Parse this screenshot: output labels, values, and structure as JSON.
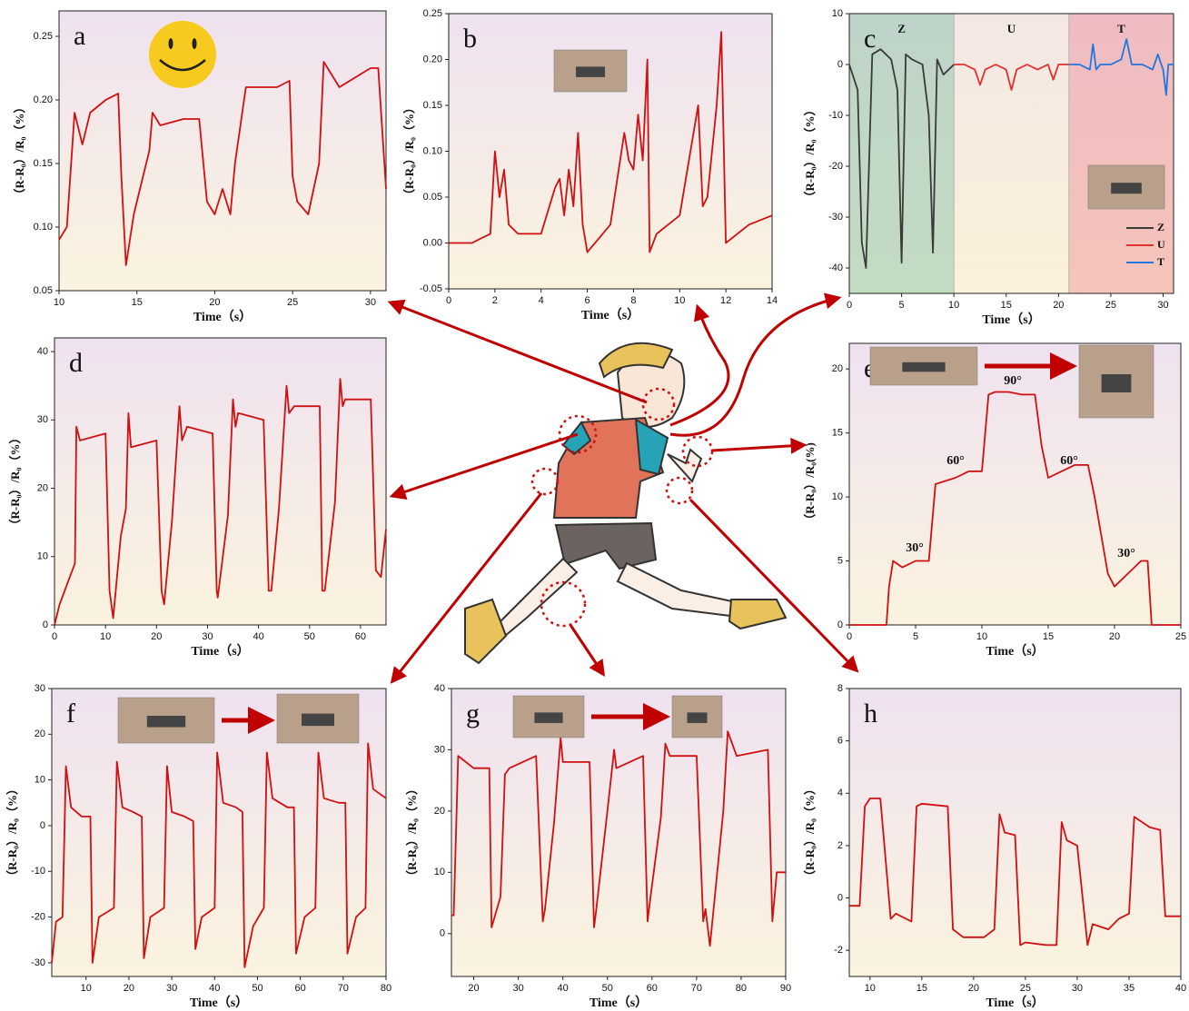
{
  "chart_data": [
    {
      "type": "line",
      "label": "a",
      "xlabel": "Time（s）",
      "ylabel": "（R-R₀）/R₀（%）",
      "color": "#d01010",
      "x": [
        10,
        10.5,
        11,
        11.5,
        12,
        13,
        13.8,
        14,
        14.3,
        14.8,
        15.2,
        15.8,
        16,
        16.5,
        18,
        19,
        19.5,
        20,
        20.5,
        21,
        21.3,
        22,
        24,
        24.8,
        25,
        25.3,
        26,
        26.7,
        27,
        28,
        30,
        30.5,
        31
      ],
      "values": [
        0.09,
        0.1,
        0.19,
        0.165,
        0.19,
        0.2,
        0.205,
        0.14,
        0.07,
        0.11,
        0.13,
        0.16,
        0.19,
        0.18,
        0.185,
        0.185,
        0.12,
        0.11,
        0.13,
        0.11,
        0.15,
        0.21,
        0.21,
        0.215,
        0.14,
        0.12,
        0.11,
        0.15,
        0.23,
        0.21,
        0.225,
        0.225,
        0.13
      ],
      "xlim": [
        10,
        31
      ],
      "ylim": [
        0.05,
        0.27
      ],
      "xticks": [
        10,
        15,
        20,
        25,
        30
      ],
      "yticks": [
        0.05,
        {
          "value": 0.1,
          "label": "0.10"
        },
        0.15,
        {
          "value": 0.2,
          "label": "0.20"
        },
        0.25
      ]
    },
    {
      "type": "line",
      "label": "b",
      "xlabel": "Time（s）",
      "ylabel": "（R-R₀）/R₀（%）",
      "color": "#d01010",
      "x": [
        0,
        1,
        1.8,
        2,
        2.2,
        2.4,
        2.6,
        3,
        4,
        4.6,
        4.8,
        5,
        5.2,
        5.4,
        5.6,
        5.8,
        6,
        7,
        7.6,
        7.8,
        8,
        8.2,
        8.4,
        8.6,
        8.7,
        9,
        10,
        10.8,
        11,
        11.2,
        11.6,
        11.8,
        12,
        13,
        14
      ],
      "values": [
        0,
        0,
        0.01,
        0.1,
        0.05,
        0.08,
        0.02,
        0.01,
        0.01,
        0.06,
        0.07,
        0.03,
        0.08,
        0.04,
        0.12,
        0.02,
        -0.01,
        0.02,
        0.12,
        0.09,
        0.08,
        0.14,
        0.09,
        0.2,
        -0.01,
        0.01,
        0.03,
        0.15,
        0.04,
        0.05,
        0.15,
        0.23,
        0.0,
        0.02,
        0.03
      ],
      "xlim": [
        0,
        14
      ],
      "ylim": [
        -0.05,
        0.25
      ],
      "xticks": [
        0,
        2,
        4,
        6,
        8,
        10,
        12,
        14
      ],
      "yticks": [
        -0.05,
        {
          "value": 0,
          "label": "0.00"
        },
        0.05,
        {
          "value": 0.1,
          "label": "0.10"
        },
        0.15,
        {
          "value": 0.2,
          "label": "0.20"
        },
        0.25
      ]
    },
    {
      "type": "line",
      "label": "c",
      "xlabel": "Time（s）",
      "ylabel": "（R-R₀）/R₀（%）",
      "series": [
        {
          "name": "Z",
          "color": "#3a3a3a",
          "x": [
            0,
            0.8,
            1.2,
            1.6,
            2.2,
            3,
            4,
            4.6,
            5,
            5.4,
            6,
            7,
            7.6,
            8,
            8.4,
            9,
            10
          ],
          "values": [
            0,
            -5,
            -35,
            -40,
            2,
            3,
            1,
            -5,
            -39,
            2,
            1,
            0,
            -10,
            -37,
            1,
            -2,
            0
          ]
        },
        {
          "name": "U",
          "color": "#e03030",
          "x": [
            10,
            11,
            12,
            12.5,
            13,
            14,
            15,
            15.5,
            16,
            17,
            18,
            19,
            19.5,
            20,
            21
          ],
          "values": [
            0,
            0,
            -1,
            -4,
            -1,
            0,
            -1,
            -5,
            -1,
            0,
            -1,
            0,
            -3,
            0,
            0
          ]
        },
        {
          "name": "T",
          "color": "#1f77e0",
          "x": [
            21,
            22,
            23,
            23.3,
            23.6,
            24,
            25,
            26,
            26.5,
            27,
            28,
            29,
            29.5,
            30,
            30.3,
            30.5,
            31
          ],
          "values": [
            0,
            0,
            -1,
            4,
            -1,
            0,
            0,
            1,
            5,
            0,
            0,
            -1,
            2,
            -1,
            -6,
            0,
            0
          ]
        }
      ],
      "xlim": [
        0,
        31
      ],
      "ylim": [
        -45,
        10
      ],
      "xticks": [
        0,
        5,
        10,
        15,
        20,
        25,
        30
      ],
      "yticks": [
        10,
        0,
        -10,
        -20,
        -30,
        -40
      ]
    },
    {
      "type": "line",
      "label": "d",
      "xlabel": "Time（s）",
      "ylabel": "（R-R₀）/R₀（%）",
      "color": "#d01010",
      "x": [
        0,
        1,
        3,
        4,
        4.3,
        5,
        10,
        10.8,
        11.5,
        13,
        14,
        14.5,
        15,
        20,
        21,
        21.5,
        23,
        24.5,
        25,
        26,
        31,
        31.8,
        32,
        34,
        35,
        35.5,
        36,
        41,
        42,
        42.5,
        44,
        45.5,
        46,
        47,
        52,
        52.5,
        53,
        55,
        56,
        56.5,
        57,
        62,
        63,
        64,
        65
      ],
      "values": [
        0,
        3,
        7,
        9,
        29,
        27,
        28,
        5,
        1,
        13,
        17,
        31,
        26,
        27,
        5,
        3,
        15,
        32,
        27,
        29,
        28,
        5,
        4,
        16,
        33,
        29,
        31,
        30,
        5,
        5,
        17,
        35,
        31,
        32,
        32,
        5,
        5,
        18,
        36,
        32,
        33,
        33,
        8,
        7,
        14
      ],
      "xlim": [
        0,
        65
      ],
      "ylim": [
        0,
        42
      ],
      "xticks": [
        0,
        10,
        20,
        30,
        40,
        50,
        60
      ],
      "yticks": [
        0,
        10,
        20,
        30,
        40
      ]
    },
    {
      "type": "line",
      "label": "e",
      "xlabel": "Time（s）",
      "ylabel": "（R-R₀）/R₀(%)",
      "color": "#d01010",
      "x": [
        0,
        2.8,
        3,
        3.3,
        4,
        5,
        6,
        6.5,
        8,
        9,
        10,
        10.5,
        11,
        12,
        13,
        14,
        14.5,
        15,
        16,
        17,
        18,
        18.5,
        19.5,
        20,
        21,
        22,
        22.5,
        22.8,
        25
      ],
      "values": [
        0,
        0,
        3,
        5,
        4.5,
        5,
        5,
        11,
        11.5,
        12,
        12,
        18,
        18.2,
        18.2,
        18,
        18,
        14,
        11.5,
        12,
        12.5,
        12.5,
        10,
        4,
        3,
        4,
        5,
        5,
        0,
        0
      ],
      "annotations": [
        "30°",
        "60°",
        "90°",
        "60°",
        "30°"
      ],
      "xlim": [
        0,
        25
      ],
      "ylim": [
        0,
        22
      ],
      "xticks": [
        0,
        5,
        10,
        15,
        20,
        25
      ],
      "yticks": [
        0,
        5,
        10,
        15,
        20
      ]
    },
    {
      "type": "line",
      "label": "f",
      "xlabel": "Time（s）",
      "ylabel": "（R-R₀）/R₀（%）",
      "color": "#d01010",
      "x": [
        2,
        3,
        4.5,
        5.3,
        6.5,
        9,
        11,
        11.5,
        13,
        16.5,
        17.2,
        18.5,
        21,
        23,
        23.5,
        25,
        28.2,
        28.9,
        30,
        33,
        35,
        35.5,
        37,
        40,
        40.6,
        42,
        45,
        46.5,
        47,
        49,
        51.5,
        52.2,
        53.5,
        57,
        58.5,
        59,
        61,
        63.5,
        64.2,
        65.5,
        69,
        70.5,
        71,
        73,
        75.2,
        75.8,
        77,
        80
      ],
      "values": [
        -30,
        -21,
        -20,
        13,
        4,
        2,
        2,
        -30,
        -20,
        -18,
        14,
        4,
        3,
        2,
        -29,
        -20,
        -18,
        13,
        3,
        2,
        1,
        -27,
        -20,
        -18,
        16,
        5,
        4,
        3,
        -31,
        -22,
        -18,
        16,
        6,
        4,
        4,
        -28,
        -20,
        -18,
        16,
        6,
        5,
        5,
        -28,
        -20,
        -18,
        18,
        8,
        6
      ],
      "xlim": [
        2,
        80
      ],
      "ylim": [
        -33,
        30
      ],
      "xticks": [
        10,
        20,
        30,
        40,
        50,
        60,
        70,
        80
      ],
      "yticks": [
        -30,
        -20,
        -10,
        0,
        10,
        20,
        30
      ]
    },
    {
      "type": "line",
      "label": "g",
      "xlabel": "Time（s）",
      "ylabel": "（R-R₀）/R₀（%）",
      "color": "#d01010",
      "x": [
        15,
        15.5,
        16.5,
        20,
        23.5,
        24,
        26,
        27,
        28,
        34,
        35.5,
        36,
        38,
        39.5,
        40,
        46,
        47,
        47.5,
        50,
        51.5,
        52,
        58,
        59,
        59.5,
        62,
        63,
        64,
        70,
        71.5,
        72,
        73,
        76,
        77,
        79,
        86,
        87,
        88,
        90
      ],
      "values": [
        3,
        3,
        29,
        27,
        27,
        1,
        6,
        26,
        27,
        29,
        2,
        4,
        18,
        32,
        28,
        28,
        1,
        4,
        20,
        30,
        27,
        29,
        2,
        5,
        19,
        31,
        29,
        29,
        2,
        4,
        -2,
        20,
        33,
        29,
        30,
        2,
        10,
        10
      ],
      "xlim": [
        15,
        90
      ],
      "ylim": [
        -7,
        40
      ],
      "xticks": [
        20,
        30,
        40,
        50,
        60,
        70,
        80,
        90
      ],
      "yticks": [
        0,
        10,
        20,
        30,
        40
      ]
    },
    {
      "type": "line",
      "label": "h",
      "xlabel": "Time（s）",
      "ylabel": "（R-R₀）/R₀（%）",
      "color": "#d01010",
      "x": [
        8,
        9,
        9.5,
        10,
        11,
        12,
        12.5,
        14,
        14.5,
        15,
        17.5,
        18,
        19,
        21,
        22,
        22.5,
        23,
        24,
        24.5,
        25,
        27,
        28,
        28.5,
        29,
        30,
        31,
        31.5,
        33,
        34,
        35,
        35.5,
        37,
        38,
        38.5,
        40
      ],
      "values": [
        -0.3,
        -0.3,
        3.5,
        3.8,
        3.8,
        -0.8,
        -0.6,
        -0.9,
        3.5,
        3.6,
        3.5,
        -1.2,
        -1.5,
        -1.5,
        -1.2,
        3.2,
        2.5,
        2.4,
        -1.8,
        -1.7,
        -1.8,
        -1.8,
        2.9,
        2.2,
        2,
        -1.8,
        -1.0,
        -1.2,
        -0.8,
        -0.6,
        3.1,
        2.7,
        2.6,
        -0.7,
        -0.7
      ],
      "xlim": [
        8,
        40
      ],
      "ylim": [
        -3,
        8
      ],
      "xticks": [
        10,
        15,
        20,
        25,
        30,
        35,
        40
      ],
      "yticks": [
        -2,
        0,
        2,
        4,
        6,
        8
      ]
    }
  ]
}
